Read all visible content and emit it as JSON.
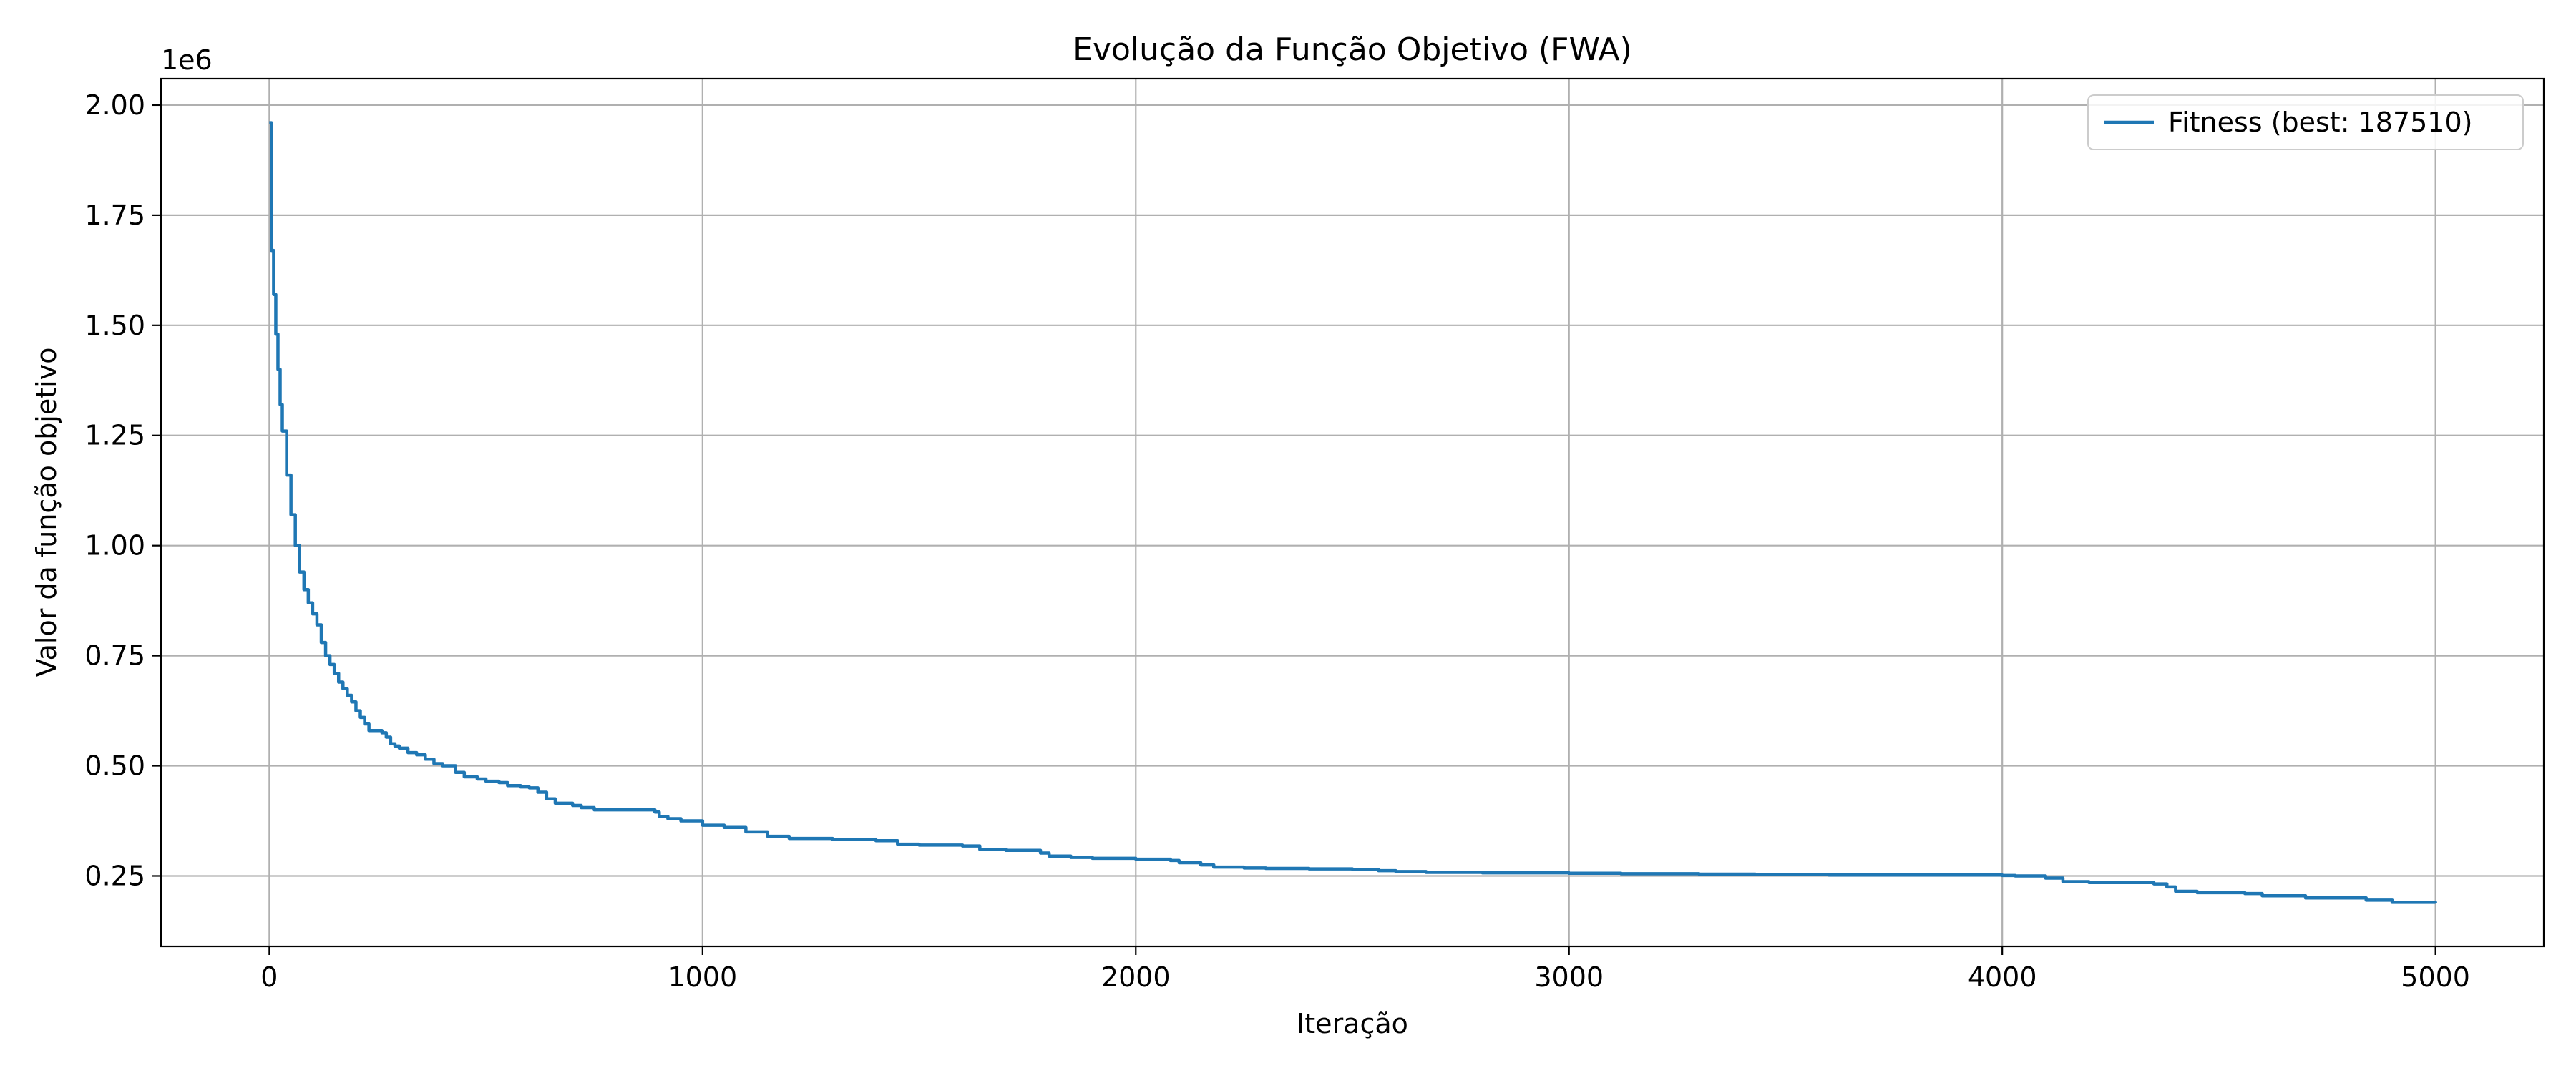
{
  "chart_data": {
    "type": "line",
    "title": "Evolução da Função Objetivo (FWA)",
    "xlabel": "Iteração",
    "ylabel": "Valor da função objetivo",
    "y_offset_label": "1e6",
    "xlim": [
      -250,
      5250
    ],
    "ylim": [
      0.09,
      2.06
    ],
    "x_ticks": [
      0,
      1000,
      2000,
      3000,
      4000,
      5000
    ],
    "x_tick_labels": [
      "0",
      "1000",
      "2000",
      "3000",
      "4000",
      "5000"
    ],
    "y_ticks": [
      0.25,
      0.5,
      0.75,
      1.0,
      1.25,
      1.5,
      1.75,
      2.0
    ],
    "y_tick_labels": [
      "0.25",
      "0.50",
      "0.75",
      "1.00",
      "1.25",
      "1.50",
      "1.75",
      "2.00"
    ],
    "grid": true,
    "legend_position": "top-right",
    "colors": {
      "line": "#1f77b4",
      "grid": "#b0b0b0",
      "axes": "#000000"
    },
    "series": [
      {
        "name": "Fitness (best: 187510)",
        "x": [
          0,
          5,
          10,
          15,
          20,
          25,
          30,
          40,
          50,
          60,
          70,
          80,
          90,
          100,
          110,
          120,
          130,
          140,
          150,
          160,
          170,
          180,
          190,
          200,
          210,
          220,
          230,
          240,
          250,
          260,
          270,
          280,
          290,
          300,
          320,
          340,
          360,
          380,
          400,
          430,
          450,
          480,
          500,
          530,
          550,
          580,
          600,
          620,
          640,
          660,
          700,
          720,
          750,
          800,
          850,
          890,
          900,
          920,
          950,
          1000,
          1050,
          1100,
          1150,
          1200,
          1300,
          1400,
          1450,
          1500,
          1600,
          1640,
          1700,
          1780,
          1800,
          1850,
          1900,
          2000,
          2080,
          2100,
          2150,
          2180,
          2250,
          2300,
          2400,
          2500,
          2560,
          2600,
          2670,
          2700,
          2800,
          3000,
          3120,
          3300,
          3430,
          3600,
          3800,
          4000,
          4030,
          4100,
          4140,
          4200,
          4350,
          4380,
          4400,
          4450,
          4560,
          4600,
          4700,
          4840,
          4900,
          5000
        ],
        "values": [
          1.96,
          1.67,
          1.57,
          1.48,
          1.4,
          1.32,
          1.26,
          1.16,
          1.07,
          1.0,
          0.94,
          0.9,
          0.87,
          0.845,
          0.82,
          0.78,
          0.75,
          0.73,
          0.71,
          0.69,
          0.675,
          0.66,
          0.645,
          0.625,
          0.61,
          0.595,
          0.58,
          0.58,
          0.58,
          0.575,
          0.565,
          0.55,
          0.545,
          0.54,
          0.53,
          0.525,
          0.515,
          0.505,
          0.5,
          0.485,
          0.475,
          0.47,
          0.465,
          0.462,
          0.455,
          0.452,
          0.45,
          0.44,
          0.425,
          0.415,
          0.41,
          0.405,
          0.4,
          0.4,
          0.4,
          0.395,
          0.385,
          0.38,
          0.375,
          0.365,
          0.36,
          0.35,
          0.34,
          0.335,
          0.333,
          0.33,
          0.322,
          0.32,
          0.318,
          0.31,
          0.308,
          0.302,
          0.295,
          0.292,
          0.29,
          0.288,
          0.285,
          0.28,
          0.275,
          0.27,
          0.268,
          0.267,
          0.266,
          0.265,
          0.262,
          0.26,
          0.258,
          0.258,
          0.257,
          0.256,
          0.255,
          0.254,
          0.253,
          0.252,
          0.252,
          0.251,
          0.25,
          0.245,
          0.237,
          0.235,
          0.232,
          0.225,
          0.215,
          0.212,
          0.21,
          0.205,
          0.2,
          0.195,
          0.19,
          0.188
        ]
      }
    ]
  }
}
